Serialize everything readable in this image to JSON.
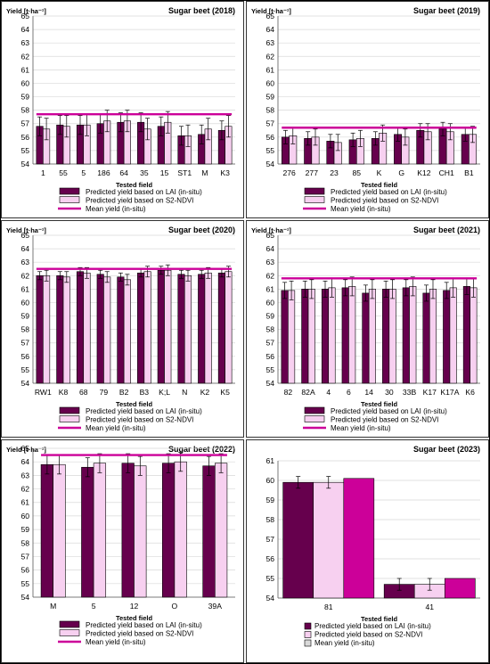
{
  "legend": {
    "lai": "Predicted yield based on LAI (in-situ)",
    "ndvi": "Predicted yield based on S2-NDVI",
    "mean": "Mean yield (in-situ)"
  },
  "colors": {
    "lai": "#66004d",
    "ndvi": "#f7d0f0",
    "mean": "#cc0099"
  },
  "chart_data": [
    {
      "type": "bar",
      "title": "Sugar beet  (2018)",
      "ylabel": "Yield [t·ha⁻¹]",
      "xlabel": "Tested field",
      "ylim": [
        54,
        65
      ],
      "yticks": [
        54,
        55,
        56,
        57,
        58,
        59,
        60,
        61,
        62,
        63,
        64,
        65
      ],
      "categories": [
        "1",
        "55",
        "5",
        "186",
        "64",
        "35",
        "15",
        "ST1",
        "M",
        "K3"
      ],
      "series": [
        {
          "name": "Predicted yield based on LAI (in-situ)",
          "values": [
            56.8,
            56.9,
            56.9,
            57.0,
            57.1,
            57.1,
            56.8,
            56.1,
            56.2,
            56.5
          ],
          "errors": [
            0.7,
            0.7,
            0.7,
            0.7,
            0.7,
            0.7,
            0.7,
            0.7,
            0.7,
            0.7
          ]
        },
        {
          "name": "Predicted yield based on S2-NDVI",
          "values": [
            56.6,
            56.8,
            56.9,
            57.2,
            57.2,
            56.6,
            57.1,
            56.1,
            56.6,
            56.8
          ],
          "errors": [
            0.8,
            0.8,
            0.8,
            0.8,
            0.8,
            0.8,
            0.8,
            0.8,
            0.8,
            0.8
          ]
        }
      ],
      "mean": 57.7,
      "grid": true
    },
    {
      "type": "bar",
      "title": "Sugar beet  (2019)",
      "ylabel": "Yield [t·ha⁻¹]",
      "xlabel": "Tested field",
      "ylim": [
        54,
        65
      ],
      "yticks": [
        54,
        55,
        56,
        57,
        58,
        59,
        60,
        61,
        62,
        63,
        64,
        65
      ],
      "categories": [
        "276",
        "277",
        "23",
        "85",
        "K",
        "G",
        "K12",
        "CH1",
        "B1"
      ],
      "series": [
        {
          "name": "Predicted yield based on LAI (in-situ)",
          "values": [
            56.0,
            55.9,
            55.7,
            55.8,
            55.9,
            56.2,
            56.5,
            56.6,
            56.2
          ],
          "errors": [
            0.5,
            0.5,
            0.5,
            0.5,
            0.5,
            0.5,
            0.5,
            0.5,
            0.5
          ]
        },
        {
          "name": "Predicted yield based on S2-NDVI",
          "values": [
            56.1,
            56.0,
            55.6,
            55.9,
            56.3,
            56.0,
            56.4,
            56.4,
            56.2
          ],
          "errors": [
            0.6,
            0.6,
            0.6,
            0.6,
            0.6,
            0.6,
            0.6,
            0.6,
            0.6
          ]
        }
      ],
      "mean": 56.7,
      "grid": true
    },
    {
      "type": "bar",
      "title": "Sugar beet  (2020)",
      "ylabel": "Yield [t·ha⁻¹]",
      "xlabel": "Tested field",
      "ylim": [
        54,
        65
      ],
      "yticks": [
        54,
        55,
        56,
        57,
        58,
        59,
        60,
        61,
        62,
        63,
        64,
        65
      ],
      "categories": [
        "RW1",
        "K8",
        "68",
        "79",
        "B2",
        "B3",
        "K;L",
        "N",
        "K2",
        "K5"
      ],
      "series": [
        {
          "name": "Predicted yield based on LAI (in-situ)",
          "values": [
            62.0,
            62.0,
            62.3,
            62.1,
            61.9,
            62.2,
            62.4,
            62.1,
            62.1,
            62.2
          ],
          "errors": [
            0.3,
            0.3,
            0.3,
            0.3,
            0.3,
            0.3,
            0.3,
            0.3,
            0.3,
            0.3
          ]
        },
        {
          "name": "Predicted yield based on S2-NDVI",
          "values": [
            62.0,
            61.9,
            62.2,
            61.9,
            61.7,
            62.3,
            62.4,
            62.0,
            62.2,
            62.3
          ],
          "errors": [
            0.4,
            0.4,
            0.4,
            0.4,
            0.4,
            0.4,
            0.4,
            0.4,
            0.4,
            0.4
          ]
        }
      ],
      "mean": 62.5,
      "grid": true
    },
    {
      "type": "bar",
      "title": "Sugar beet  (2021)",
      "ylabel": "Yield [t·ha⁻¹]",
      "xlabel": "Tested field",
      "ylim": [
        54,
        65
      ],
      "yticks": [
        54,
        55,
        56,
        57,
        58,
        59,
        60,
        61,
        62,
        63,
        64,
        65
      ],
      "categories": [
        "82",
        "82A",
        "4",
        "6",
        "14",
        "30",
        "33B",
        "K17",
        "K17A",
        "K6"
      ],
      "series": [
        {
          "name": "Predicted yield based on LAI (in-situ)",
          "values": [
            60.9,
            61.0,
            61.0,
            61.1,
            60.7,
            61.0,
            61.1,
            60.7,
            60.9,
            61.2
          ],
          "errors": [
            0.6,
            0.6,
            0.6,
            0.6,
            0.6,
            0.6,
            0.6,
            0.6,
            0.6,
            0.6
          ]
        },
        {
          "name": "Predicted yield based on S2-NDVI",
          "values": [
            60.9,
            61.0,
            61.1,
            61.2,
            61.0,
            61.0,
            61.2,
            61.0,
            61.1,
            61.1
          ],
          "errors": [
            0.7,
            0.7,
            0.7,
            0.7,
            0.7,
            0.7,
            0.7,
            0.7,
            0.7,
            0.7
          ]
        }
      ],
      "mean": 61.8,
      "grid": true
    },
    {
      "type": "bar",
      "title": "Sugar beet  (2022)",
      "ylabel": "Yield [t·ha⁻¹]",
      "xlabel": "Tested field",
      "ylim": [
        54,
        65
      ],
      "yticks": [
        54,
        55,
        56,
        57,
        58,
        59,
        60,
        61,
        62,
        63,
        64,
        65
      ],
      "categories": [
        "M",
        "5",
        "12",
        "O",
        "39A"
      ],
      "series": [
        {
          "name": "Predicted yield based on LAI (in-situ)",
          "values": [
            63.8,
            63.6,
            63.9,
            63.9,
            63.7
          ],
          "errors": [
            0.7,
            0.7,
            0.7,
            0.7,
            0.7
          ]
        },
        {
          "name": "Predicted yield based on S2-NDVI",
          "values": [
            63.8,
            63.9,
            63.7,
            64.0,
            63.9
          ],
          "errors": [
            0.7,
            0.7,
            0.7,
            0.7,
            0.7
          ]
        }
      ],
      "mean": 64.5,
      "grid": true
    },
    {
      "type": "bar",
      "title": "Sugar beet  (2023)",
      "xlabel": "Tested field",
      "ylim": [
        54,
        61
      ],
      "yticks": [
        54,
        55,
        56,
        57,
        58,
        59,
        60,
        61
      ],
      "categories": [
        "81",
        "41"
      ],
      "series": [
        {
          "name": "Predicted yield based on LAI (in-situ)",
          "values": [
            59.9,
            54.7
          ],
          "errors": [
            0.3,
            0.3
          ]
        },
        {
          "name": "Predicted yield based on S2-NDVI",
          "values": [
            59.9,
            54.7
          ],
          "errors": [
            0.3,
            0.3
          ]
        },
        {
          "name": "Mean yield (in-situ)",
          "values": [
            60.1,
            55.0
          ]
        }
      ],
      "grid": true
    }
  ]
}
